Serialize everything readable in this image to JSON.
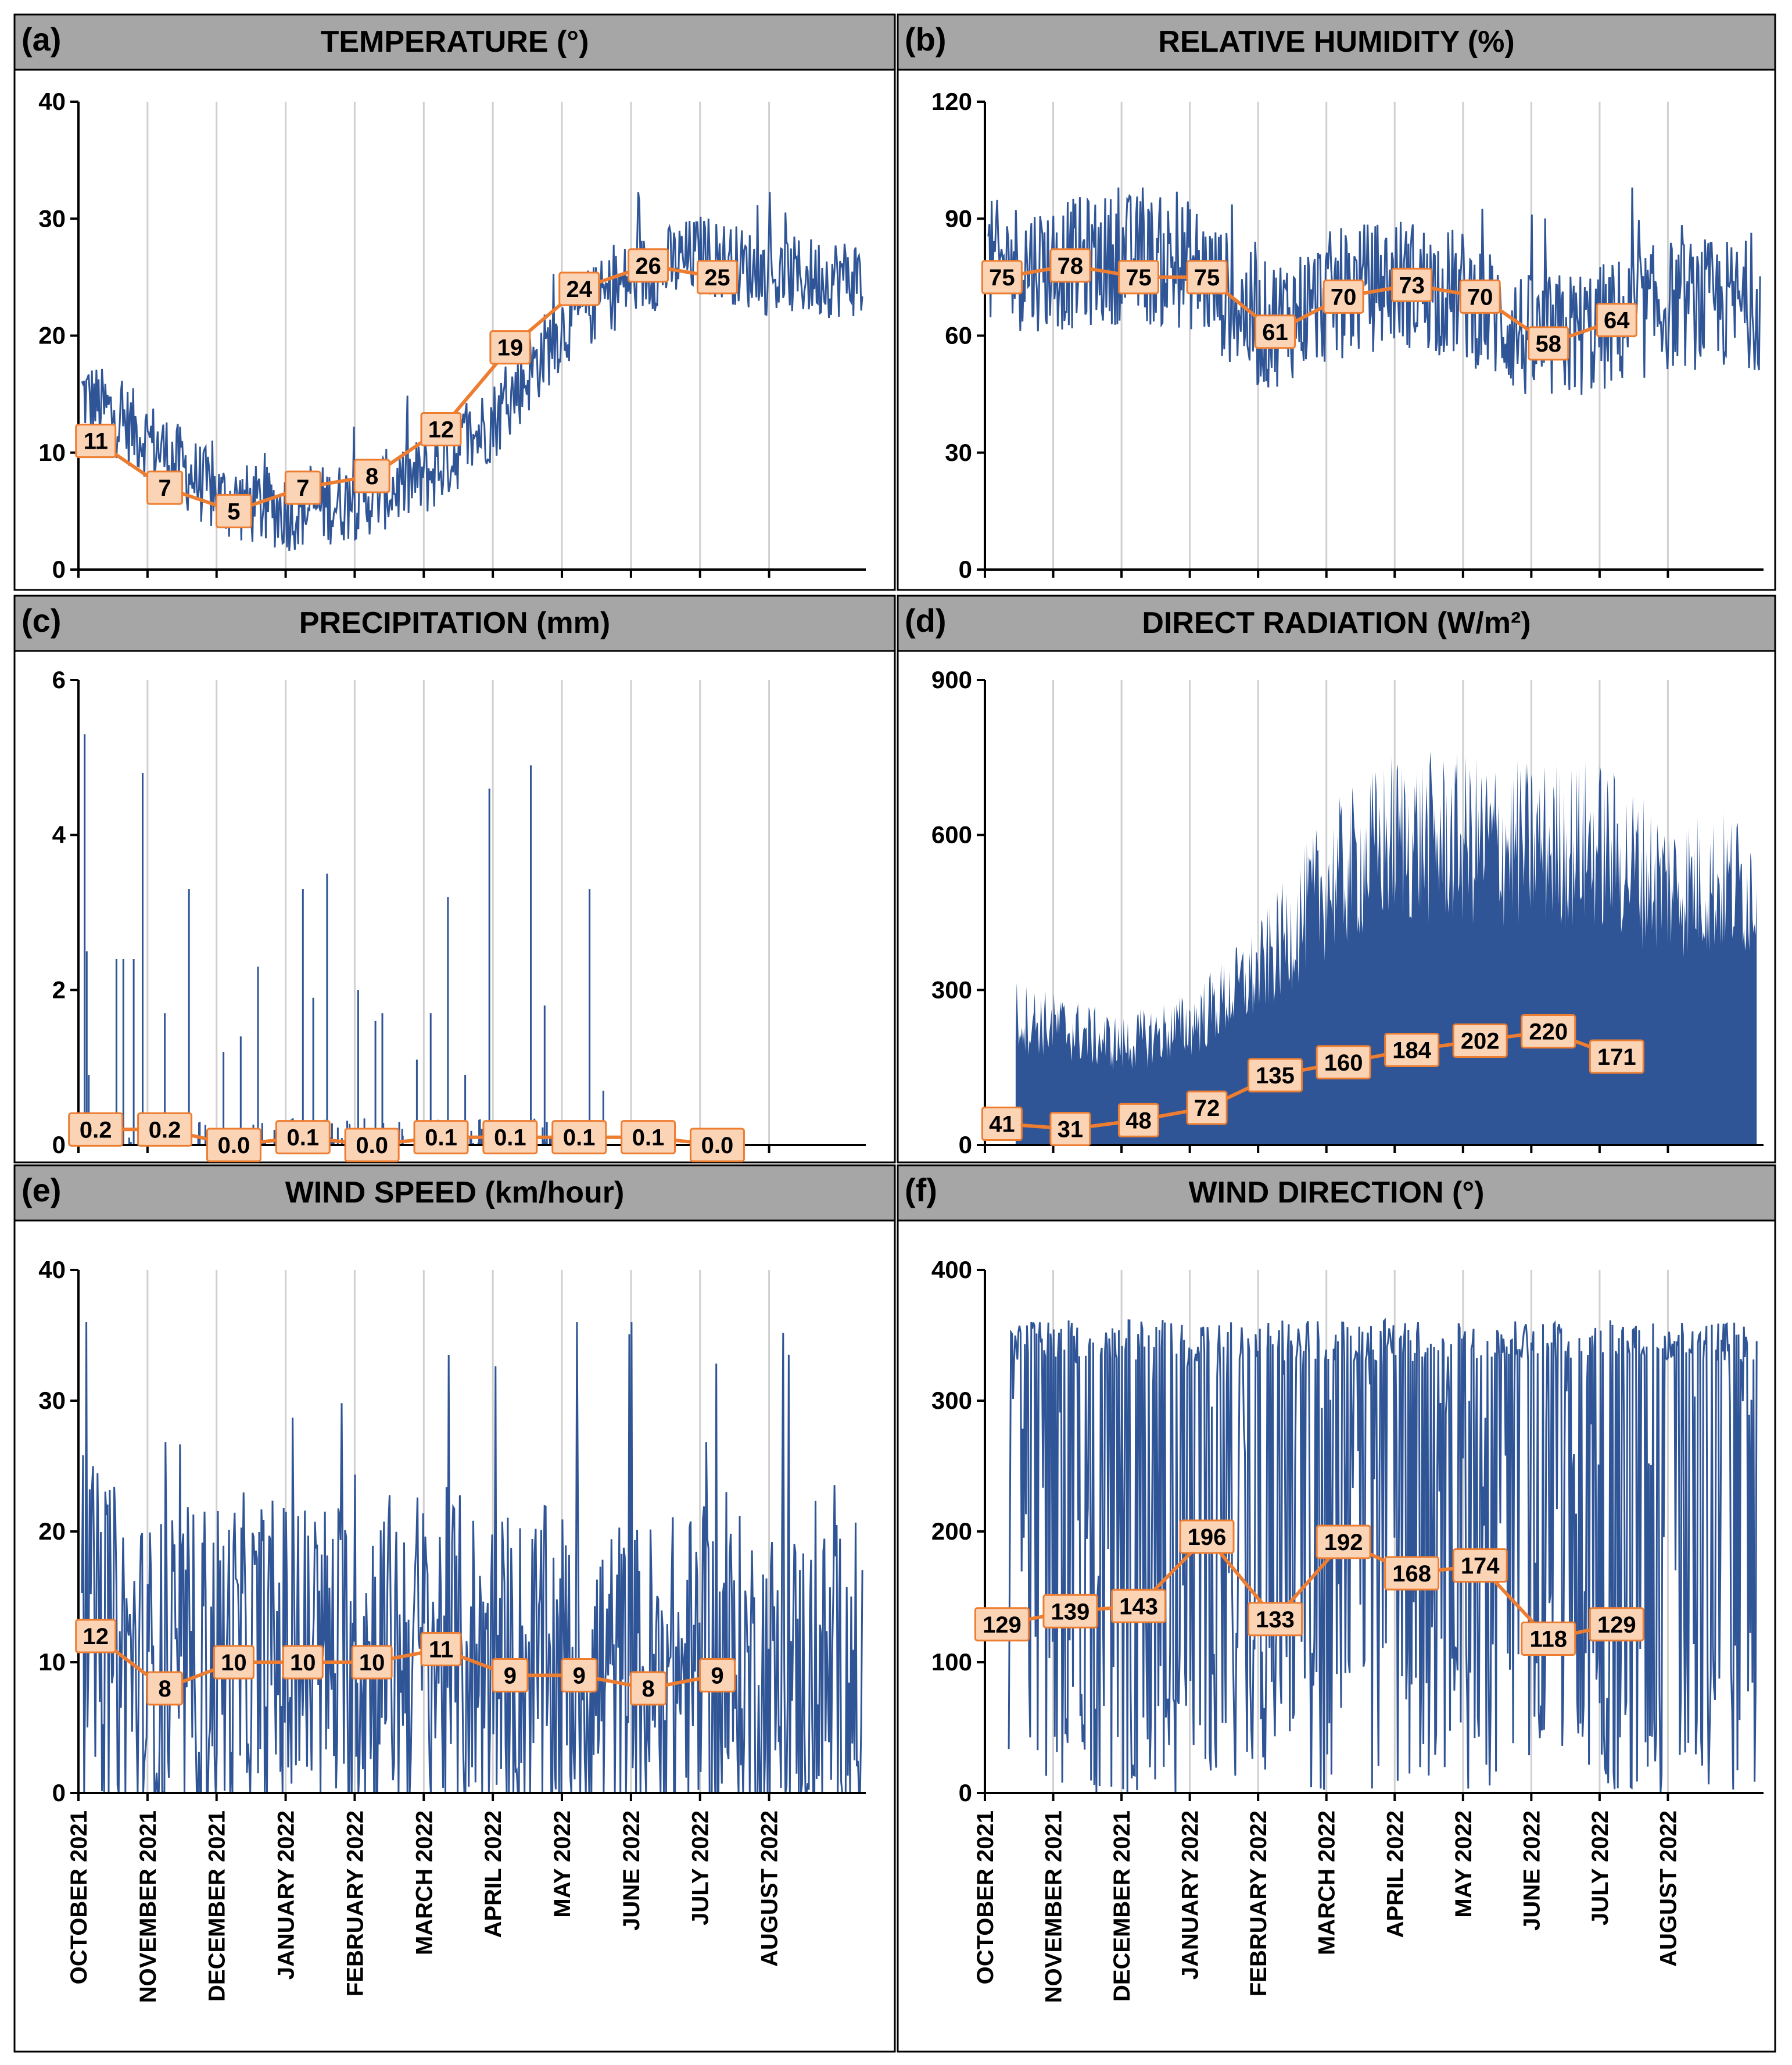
{
  "colors": {
    "raw": "#2f5597",
    "mean": "#ed7d31",
    "label_fill": "#fbd3b5",
    "title_bar": "#a6a6a6"
  },
  "months": [
    "OCTOBER 2021",
    "NOVEMBER 2021",
    "DECEMBER 2021",
    "JANUARY 2022",
    "FEBRUARY 2022",
    "MARCH 2022",
    "APRIL 2022",
    "MAY 2022",
    "JUNE 2022",
    "JULY 2022",
    "AUGUST 2022"
  ],
  "chart_data": [
    {
      "panel": "(a)",
      "title": "TEMPERATURE (°)",
      "type": "line",
      "ylim": [
        0,
        40
      ],
      "yticks": [
        "0",
        "10",
        "20",
        "30",
        "40"
      ],
      "x": [
        "OCTOBER 2021",
        "NOVEMBER 2021",
        "DECEMBER 2021",
        "JANUARY 2022",
        "FEBRUARY 2022",
        "MARCH 2022",
        "APRIL 2022",
        "MAY 2022",
        "JUNE 2022",
        "JULY 2022"
      ],
      "monthly_mean": [
        11,
        7,
        5,
        7,
        8,
        12,
        19,
        24,
        26,
        25
      ],
      "labels": [
        "11",
        "7",
        "5",
        "7",
        "8",
        "12",
        "19",
        "24",
        "26",
        "25"
      ],
      "raw_series": {
        "style": "line",
        "baseline": [
          15,
          11,
          6,
          5,
          6,
          8,
          13,
          21,
          25,
          27,
          25
        ],
        "spread": 7,
        "max": 33.5,
        "min": 0
      }
    },
    {
      "panel": "(b)",
      "title": "RELATIVE HUMIDITY (%)",
      "type": "line",
      "ylim": [
        0,
        120
      ],
      "yticks": [
        "0",
        "30",
        "60",
        "90",
        "120"
      ],
      "x": [
        "OCTOBER 2021",
        "NOVEMBER 2021",
        "DECEMBER 2021",
        "JANUARY 2022",
        "FEBRUARY 2022",
        "MARCH 2022",
        "APRIL 2022",
        "MAY 2022",
        "JUNE 2022",
        "JULY 2022"
      ],
      "monthly_mean": [
        75,
        78,
        75,
        75,
        61,
        70,
        73,
        70,
        58,
        64
      ],
      "labels": [
        "75",
        "78",
        "75",
        "75",
        "61",
        "70",
        "73",
        "70",
        "58",
        "64"
      ],
      "raw_series": {
        "style": "line",
        "baseline": [
          78,
          78,
          80,
          78,
          62,
          70,
          74,
          70,
          58,
          62,
          68
        ],
        "spread": 34,
        "max": 98,
        "min": 28
      }
    },
    {
      "panel": "(c)",
      "title": "PRECIPITATION (mm)",
      "type": "line",
      "ylim": [
        0,
        6
      ],
      "yticks": [
        "0",
        "2",
        "4",
        "6"
      ],
      "x": [
        "OCTOBER 2021",
        "NOVEMBER 2021",
        "DECEMBER 2021",
        "JANUARY 2022",
        "FEBRUARY 2022",
        "MARCH 2022",
        "APRIL 2022",
        "MAY 2022",
        "JUNE 2022",
        "JULY 2022"
      ],
      "monthly_mean": [
        0.2,
        0.2,
        0.0,
        0.1,
        0.0,
        0.1,
        0.1,
        0.1,
        0.1,
        0.0
      ],
      "labels": [
        "0.2",
        "0.2",
        "0.0",
        "0.1",
        "0.0",
        "0.1",
        "0.1",
        "0.1",
        "0.1",
        "0.0"
      ],
      "raw_series": {
        "style": "spikes",
        "max": 5.3,
        "peaks": [
          [
            0.04,
            5.3
          ],
          [
            0.07,
            2.5
          ],
          [
            0.1,
            0.9
          ],
          [
            0.5,
            2.4
          ],
          [
            0.6,
            2.4
          ],
          [
            0.75,
            2.4
          ],
          [
            0.88,
            4.8
          ],
          [
            1.2,
            1.7
          ],
          [
            1.55,
            3.3
          ],
          [
            2.05,
            1.2
          ],
          [
            2.3,
            1.4
          ],
          [
            2.55,
            2.3
          ],
          [
            3.2,
            3.3
          ],
          [
            3.35,
            1.9
          ],
          [
            3.55,
            3.5
          ],
          [
            4.0,
            2.0
          ],
          [
            4.25,
            1.6
          ],
          [
            4.35,
            1.7
          ],
          [
            4.85,
            1.1
          ],
          [
            5.05,
            1.7
          ],
          [
            5.3,
            3.2
          ],
          [
            5.55,
            0.9
          ],
          [
            5.9,
            4.6
          ],
          [
            6.5,
            4.9
          ],
          [
            6.7,
            1.8
          ],
          [
            7.35,
            3.3
          ],
          [
            7.55,
            0.7
          ]
        ]
      }
    },
    {
      "panel": "(d)",
      "title": "DIRECT RADIATION (W/m²)",
      "type": "area",
      "ylim": [
        0,
        900
      ],
      "yticks": [
        "0",
        "300",
        "600",
        "900"
      ],
      "x": [
        "OCTOBER 2021",
        "NOVEMBER 2021",
        "DECEMBER 2021",
        "JANUARY 2022",
        "FEBRUARY 2022",
        "MARCH 2022",
        "APRIL 2022",
        "MAY 2022",
        "JUNE 2022",
        "JULY 2022"
      ],
      "monthly_mean": [
        41,
        31,
        48,
        72,
        135,
        160,
        184,
        202,
        220,
        171
      ],
      "labels": [
        "41",
        "31",
        "48",
        "72",
        "135",
        "160",
        "184",
        "202",
        "220",
        "171"
      ],
      "raw_series": {
        "style": "area",
        "envelope": [
          340,
          300,
          250,
          300,
          430,
          650,
          770,
          760,
          750,
          750,
          650
        ],
        "max": 790
      }
    },
    {
      "panel": "(e)",
      "title": "WIND SPEED (km/hour)",
      "type": "line",
      "ylim": [
        0,
        40
      ],
      "yticks": [
        "0",
        "10",
        "20",
        "30",
        "40"
      ],
      "x": [
        "OCTOBER 2021",
        "NOVEMBER 2021",
        "DECEMBER 2021",
        "JANUARY 2022",
        "FEBRUARY 2022",
        "MARCH 2022",
        "APRIL 2022",
        "MAY 2022",
        "JUNE 2022",
        "JULY 2022"
      ],
      "monthly_mean": [
        12,
        8,
        10,
        10,
        10,
        11,
        9,
        9,
        8,
        9
      ],
      "labels": [
        "12",
        "8",
        "10",
        "10",
        "10",
        "11",
        "9",
        "9",
        "8",
        "9"
      ],
      "raw_series": {
        "style": "line",
        "baseline": [
          13,
          8,
          10,
          10,
          10,
          11,
          9,
          9,
          8,
          9,
          8
        ],
        "spread": 26,
        "max": 36,
        "min": 0
      }
    },
    {
      "panel": "(f)",
      "title": "WIND DIRECTION (°)",
      "type": "line",
      "ylim": [
        0,
        400
      ],
      "yticks": [
        "0",
        "100",
        "200",
        "300",
        "400"
      ],
      "x": [
        "OCTOBER 2021",
        "NOVEMBER 2021",
        "DECEMBER 2021",
        "JANUARY 2022",
        "FEBRUARY 2022",
        "MARCH 2022",
        "APRIL 2022",
        "MAY 2022",
        "JUNE 2022",
        "JULY 2022"
      ],
      "monthly_mean": [
        129,
        139,
        143,
        196,
        133,
        192,
        168,
        174,
        118,
        129
      ],
      "labels": [
        "129",
        "139",
        "143",
        "196",
        "133",
        "192",
        "168",
        "174",
        "118",
        "129"
      ],
      "raw_series": {
        "style": "switching",
        "max": 362,
        "min": 0
      }
    }
  ]
}
